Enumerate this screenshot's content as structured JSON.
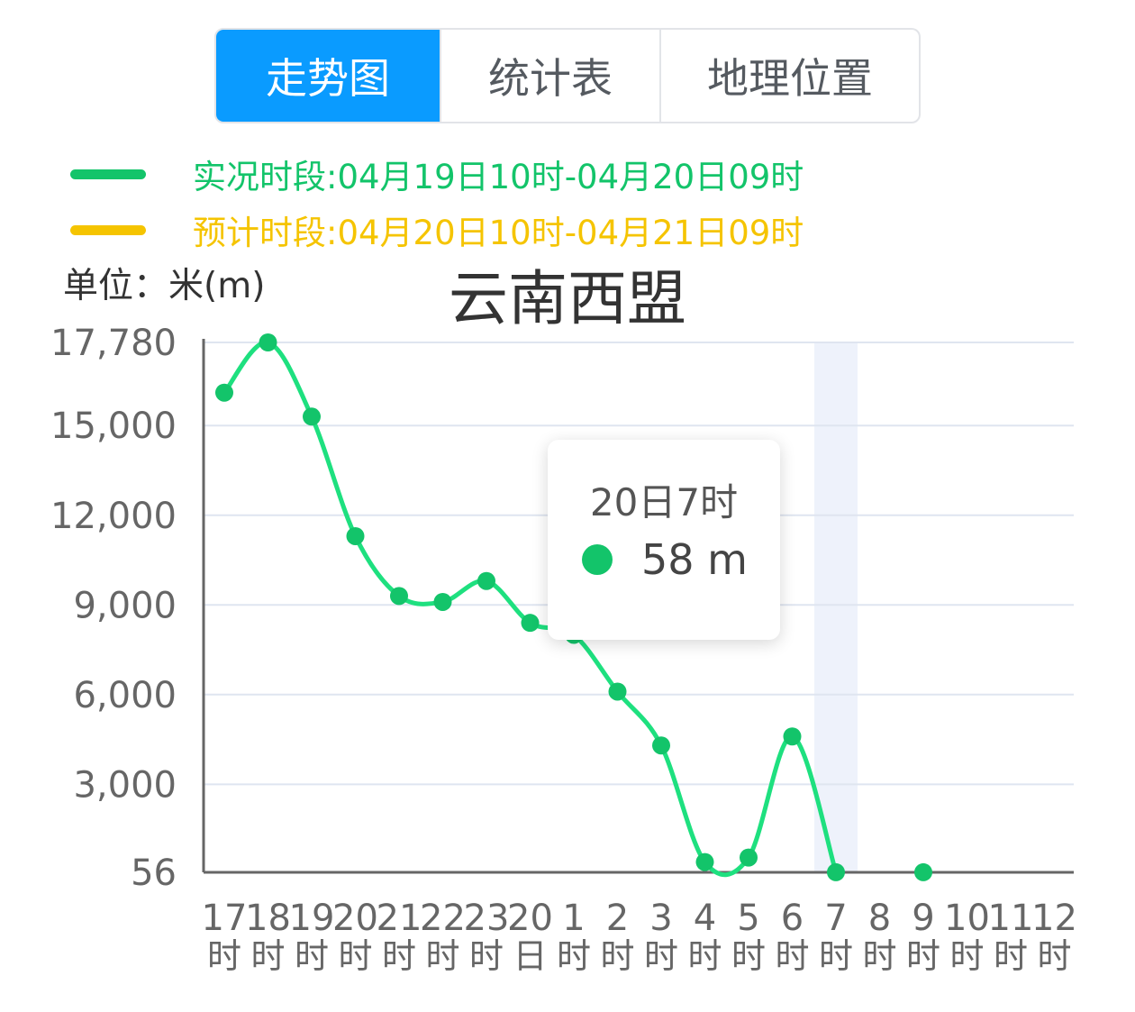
{
  "tabs": [
    {
      "label": "走势图",
      "active": true
    },
    {
      "label": "统计表",
      "active": false
    },
    {
      "label": "地理位置",
      "active": false
    }
  ],
  "legend": {
    "observed": {
      "label": "实况时段:04月19日10时-04月20日09时",
      "color": "#13c46a"
    },
    "forecast": {
      "label": "预计时段:04月20日10时-04月21日09时",
      "color": "#f5c400"
    }
  },
  "unit_label": "单位：米(m)",
  "tooltip": {
    "title": "20日7时",
    "value": "58 m"
  },
  "chart_data": {
    "type": "line",
    "title": "云南西盟",
    "ylabel": "单位：米(m)",
    "ylim": [
      56,
      17780
    ],
    "y_ticks": [
      "17,780",
      "15,000",
      "12,000",
      "9,000",
      "6,000",
      "3,000",
      "56"
    ],
    "y_tick_values": [
      17780,
      15000,
      12000,
      9000,
      6000,
      3000,
      56
    ],
    "categories": [
      [
        "17",
        "时"
      ],
      [
        "18",
        "时"
      ],
      [
        "19",
        "时"
      ],
      [
        "20",
        "时"
      ],
      [
        "21",
        "时"
      ],
      [
        "22",
        "时"
      ],
      [
        "23",
        "时"
      ],
      [
        "20",
        "日"
      ],
      [
        "1",
        "时"
      ],
      [
        "2",
        "时"
      ],
      [
        "3",
        "时"
      ],
      [
        "4",
        "时"
      ],
      [
        "5",
        "时"
      ],
      [
        "6",
        "时"
      ],
      [
        "7",
        "时"
      ],
      [
        "8",
        "时"
      ],
      [
        "9",
        "时"
      ],
      [
        "10",
        "时"
      ],
      [
        "11",
        "时"
      ],
      [
        "12",
        "时"
      ]
    ],
    "series": [
      {
        "name": "实况时段:04月19日10时-04月20日09时",
        "color": "#13c46a",
        "values": [
          16100,
          17780,
          15300,
          11300,
          9300,
          9100,
          9800,
          8400,
          8000,
          6100,
          4300,
          400,
          550,
          4600,
          58,
          null,
          58,
          null,
          null,
          null
        ]
      }
    ],
    "highlight_category": 14,
    "grid": true
  }
}
